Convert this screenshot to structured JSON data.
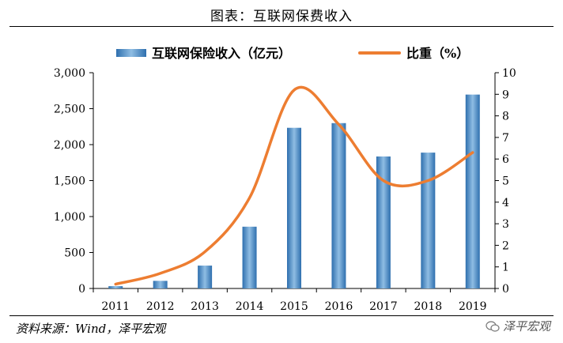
{
  "header": {
    "title": "图表：互联网保费收入"
  },
  "footer": {
    "source": "资料来源：Wind，泽平宏观",
    "watermark": "泽平宏观"
  },
  "icons": {
    "watermark": "wechat-icon"
  },
  "colors": {
    "bar_top": "#2e6fae",
    "bar_mid": "#8fbde3",
    "line": "#ed7d31",
    "axis": "#000000"
  },
  "chart_data": {
    "type": "bar",
    "categories": [
      "2011",
      "2012",
      "2013",
      "2014",
      "2015",
      "2016",
      "2017",
      "2018",
      "2019"
    ],
    "series": [
      {
        "name": "互联网保险收入（亿元）",
        "type": "bar",
        "axis": "left",
        "values": [
          32,
          106,
          318,
          859,
          2234,
          2299,
          1835,
          1889,
          2696
        ]
      },
      {
        "name": "比重（%）",
        "type": "line",
        "axis": "right",
        "smooth": true,
        "values": [
          0.2,
          0.7,
          1.7,
          4.2,
          9.2,
          7.6,
          5.0,
          5.0,
          6.3
        ]
      }
    ],
    "y_left": {
      "ylim": [
        0,
        3000
      ],
      "ticks": [
        "0",
        "500",
        "1,000",
        "1,500",
        "2,000",
        "2,500",
        "3,000"
      ]
    },
    "y_right": {
      "ylim": [
        0,
        10
      ],
      "ticks": [
        "0",
        "1",
        "2",
        "3",
        "4",
        "5",
        "6",
        "7",
        "8",
        "9",
        "10"
      ]
    },
    "legend": "top-center",
    "grid": false
  }
}
